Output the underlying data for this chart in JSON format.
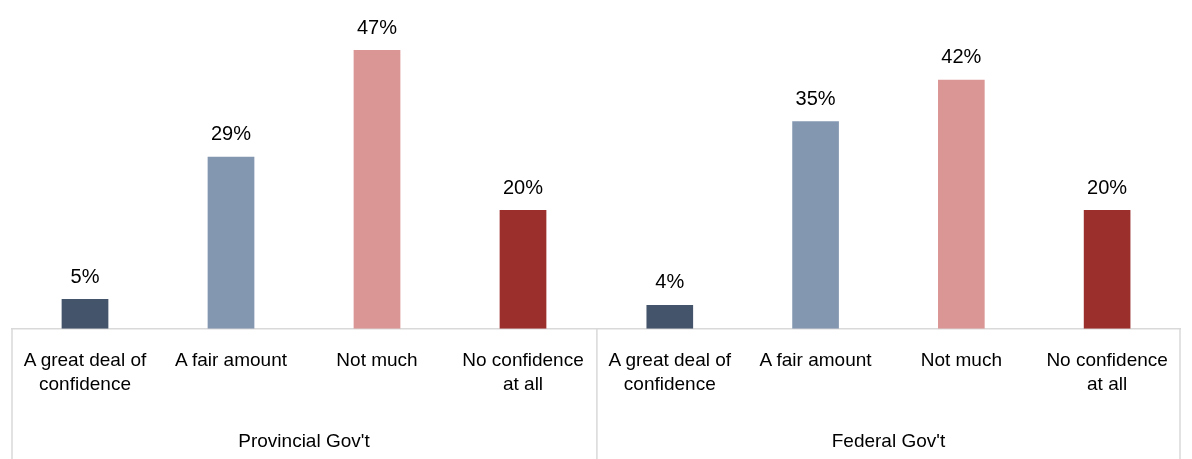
{
  "chart_data": [
    {
      "type": "bar",
      "xlabel": "Provincial Gov't",
      "categories": [
        "A great deal of confidence",
        "A fair amount",
        "Not much",
        "No confidence at all"
      ],
      "values": [
        5,
        29,
        47,
        20
      ],
      "colors": [
        "#44546a",
        "#8497b0",
        "#da9694",
        "#9b2f2c"
      ],
      "value_labels": [
        "5%",
        "29%",
        "47%",
        "20%"
      ]
    },
    {
      "type": "bar",
      "xlabel": "Federal Gov't",
      "categories": [
        "A great deal of confidence",
        "A fair amount",
        "Not much",
        "No confidence at all"
      ],
      "values": [
        4,
        35,
        42,
        20
      ],
      "colors": [
        "#44546a",
        "#8497b0",
        "#da9694",
        "#9b2f2c"
      ],
      "value_labels": [
        "4%",
        "35%",
        "42%",
        "20%"
      ]
    }
  ]
}
